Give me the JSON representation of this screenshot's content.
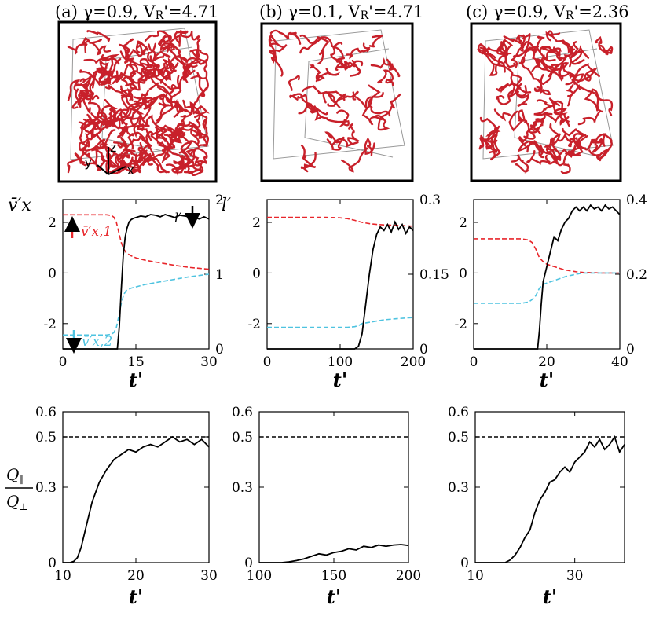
{
  "colors": {
    "black": "#000000",
    "red": "#e8262b",
    "cyan": "#4ec3e0",
    "tube": "#c8202a",
    "box": "#999999"
  },
  "panels": [
    {
      "title": "(a)  γ=0.9, V",
      "title_sub": "R",
      "title_val": "'=4.71",
      "axis_labels": [
        "y",
        "z",
        "x"
      ]
    },
    {
      "title": "(b)  γ=0.1, V",
      "title_sub": "R",
      "title_val": "'=4.71"
    },
    {
      "title": "(c)  γ=0.9, V",
      "title_sub": "R",
      "title_val": "'=2.36"
    }
  ],
  "chart_data": [
    {
      "type": "line",
      "panel": "a-middle",
      "xlabel": "t'",
      "ylabel_left": "v̄′x",
      "ylabel_right": "l′",
      "xlim": [
        0,
        30
      ],
      "ylim_left": [
        -3,
        2.9
      ],
      "ylim_right": [
        0,
        2
      ],
      "xticks": [
        0,
        15,
        30
      ],
      "yticks_left": [
        -2,
        0,
        2
      ],
      "yticks_right": [
        0,
        1,
        2
      ],
      "legend": [
        "v̄′x,1",
        "v̄′x,2",
        "l′"
      ],
      "series": [
        {
          "color": "red",
          "axis": "left",
          "style": "dashed",
          "x": [
            0,
            9,
            10,
            10.5,
            11,
            11.5,
            12,
            12.5,
            13,
            14,
            15,
            17,
            20,
            23,
            26,
            30
          ],
          "y": [
            2.3,
            2.3,
            2.27,
            2.2,
            2.0,
            1.6,
            1.2,
            0.95,
            0.8,
            0.68,
            0.6,
            0.5,
            0.4,
            0.3,
            0.22,
            0.15
          ]
        },
        {
          "color": "cyan",
          "axis": "left",
          "style": "dashed",
          "x": [
            0,
            9,
            10,
            10.5,
            11,
            11.5,
            12,
            12.5,
            13,
            14,
            15,
            17,
            20,
            23,
            26,
            30
          ],
          "y": [
            -2.45,
            -2.45,
            -2.42,
            -2.35,
            -2.15,
            -1.7,
            -1.2,
            -0.85,
            -0.7,
            -0.6,
            -0.55,
            -0.45,
            -0.35,
            -0.25,
            -0.15,
            -0.05
          ]
        },
        {
          "color": "black",
          "axis": "right",
          "style": "solid",
          "x": [
            0,
            11.2,
            11.6,
            12.0,
            12.4,
            12.8,
            13.2,
            13.6,
            14,
            14.5,
            15,
            16,
            17,
            18,
            19,
            20,
            21,
            22,
            23,
            24,
            25,
            26,
            27,
            28,
            29,
            30
          ],
          "y": [
            0,
            0,
            0.3,
            0.8,
            1.25,
            1.5,
            1.62,
            1.7,
            1.73,
            1.75,
            1.76,
            1.78,
            1.77,
            1.8,
            1.79,
            1.77,
            1.8,
            1.78,
            1.76,
            1.79,
            1.78,
            1.77,
            1.76,
            1.74,
            1.77,
            1.74
          ]
        }
      ]
    },
    {
      "type": "line",
      "panel": "b-middle",
      "xlabel": "t'",
      "xlim": [
        0,
        200
      ],
      "ylim_left": [
        -3,
        2.9
      ],
      "ylim_right": [
        0,
        0.3
      ],
      "xticks": [
        0,
        100,
        200
      ],
      "yticks_left": [
        -2,
        0,
        2
      ],
      "yticks_right": [
        0,
        0.15,
        0.3
      ],
      "series": [
        {
          "color": "red",
          "axis": "left",
          "style": "dashed",
          "x": [
            0,
            80,
            100,
            110,
            120,
            130,
            140,
            150,
            160,
            180,
            200
          ],
          "y": [
            2.2,
            2.2,
            2.18,
            2.15,
            2.08,
            2.0,
            1.95,
            1.92,
            1.9,
            1.88,
            1.85
          ]
        },
        {
          "color": "cyan",
          "axis": "left",
          "style": "dashed",
          "x": [
            0,
            110,
            120,
            125,
            130,
            140,
            150,
            160,
            180,
            200
          ],
          "y": [
            -2.15,
            -2.15,
            -2.12,
            -2.08,
            -2.0,
            -1.95,
            -1.9,
            -1.85,
            -1.8,
            -1.76
          ]
        },
        {
          "color": "black",
          "axis": "right",
          "style": "solid",
          "x": [
            0,
            120,
            125,
            130,
            135,
            140,
            145,
            150,
            155,
            160,
            165,
            170,
            175,
            180,
            185,
            190,
            195,
            200
          ],
          "y": [
            0,
            0,
            0.005,
            0.03,
            0.09,
            0.15,
            0.2,
            0.23,
            0.245,
            0.238,
            0.25,
            0.235,
            0.255,
            0.24,
            0.25,
            0.232,
            0.245,
            0.238
          ]
        }
      ]
    },
    {
      "type": "line",
      "panel": "c-middle",
      "xlabel": "t'",
      "xlim": [
        0,
        40
      ],
      "ylim_left": [
        -3,
        2.9
      ],
      "ylim_right": [
        0,
        0.4
      ],
      "xticks": [
        0,
        20,
        40
      ],
      "yticks_left": [
        -2,
        0,
        2
      ],
      "yticks_right": [
        0,
        0.2,
        0.4
      ],
      "series": [
        {
          "color": "red",
          "axis": "left",
          "style": "dashed",
          "x": [
            0,
            13,
            15,
            16,
            17,
            18,
            19,
            20,
            22,
            25,
            28,
            30,
            35,
            40
          ],
          "y": [
            1.35,
            1.35,
            1.3,
            1.2,
            0.95,
            0.6,
            0.45,
            0.35,
            0.25,
            0.12,
            0.05,
            0.02,
            0.0,
            0.0
          ]
        },
        {
          "color": "cyan",
          "axis": "left",
          "style": "dashed",
          "x": [
            0,
            13,
            15,
            16,
            17,
            18,
            19,
            20,
            22,
            25,
            28,
            30,
            35,
            40
          ],
          "y": [
            -1.2,
            -1.2,
            -1.15,
            -1.05,
            -0.9,
            -0.6,
            -0.45,
            -0.4,
            -0.3,
            -0.15,
            -0.05,
            0.0,
            0.0,
            0.0
          ]
        },
        {
          "color": "black",
          "axis": "right",
          "style": "solid",
          "x": [
            0,
            17.5,
            18,
            18.5,
            19,
            20,
            21,
            22,
            23,
            24,
            25,
            26,
            27,
            28,
            29,
            30,
            31,
            32,
            33,
            34,
            35,
            36,
            37,
            38,
            39,
            40
          ],
          "y": [
            0,
            0,
            0.05,
            0.12,
            0.18,
            0.22,
            0.26,
            0.3,
            0.29,
            0.32,
            0.34,
            0.35,
            0.37,
            0.38,
            0.37,
            0.38,
            0.37,
            0.385,
            0.375,
            0.38,
            0.37,
            0.385,
            0.375,
            0.38,
            0.37,
            0.36
          ]
        }
      ]
    },
    {
      "type": "line",
      "panel": "a-bottom",
      "xlabel": "t'",
      "ylabel": "Q∥ / Q⊥",
      "xlim": [
        10,
        30
      ],
      "ylim": [
        0,
        0.6
      ],
      "xticks": [
        10,
        20,
        30
      ],
      "yticks": [
        0,
        0.3,
        0.5,
        0.6
      ],
      "hline": 0.5,
      "series": [
        {
          "color": "black",
          "style": "solid",
          "x": [
            10,
            11,
            11.5,
            12,
            12.5,
            13,
            13.5,
            14,
            14.5,
            15,
            16,
            17,
            18,
            19,
            20,
            21,
            22,
            23,
            24,
            25,
            26,
            27,
            28,
            29,
            30
          ],
          "y": [
            0,
            0,
            0.005,
            0.02,
            0.06,
            0.12,
            0.18,
            0.24,
            0.28,
            0.32,
            0.37,
            0.41,
            0.43,
            0.45,
            0.44,
            0.46,
            0.47,
            0.46,
            0.48,
            0.5,
            0.48,
            0.49,
            0.47,
            0.49,
            0.46
          ]
        }
      ]
    },
    {
      "type": "line",
      "panel": "b-bottom",
      "xlabel": "t'",
      "xlim": [
        100,
        200
      ],
      "ylim": [
        0,
        0.6
      ],
      "xticks": [
        100,
        150,
        200
      ],
      "yticks": [
        0,
        0.3,
        0.5,
        0.6
      ],
      "hline": 0.5,
      "series": [
        {
          "color": "black",
          "style": "solid",
          "x": [
            100,
            115,
            120,
            125,
            130,
            135,
            140,
            145,
            150,
            155,
            160,
            165,
            170,
            175,
            180,
            185,
            190,
            195,
            200
          ],
          "y": [
            0,
            0,
            0.003,
            0.008,
            0.015,
            0.025,
            0.035,
            0.03,
            0.04,
            0.045,
            0.055,
            0.05,
            0.065,
            0.06,
            0.07,
            0.065,
            0.07,
            0.072,
            0.068
          ]
        }
      ]
    },
    {
      "type": "line",
      "panel": "c-bottom",
      "xlabel": "t'",
      "xlim": [
        10,
        40
      ],
      "ylim": [
        0,
        0.6
      ],
      "xticks": [
        10,
        30
      ],
      "yticks": [
        0,
        0.3,
        0.5,
        0.6
      ],
      "hline": 0.5,
      "series": [
        {
          "color": "black",
          "style": "solid",
          "x": [
            10,
            16,
            17,
            18,
            19,
            20,
            21,
            22,
            23,
            24,
            25,
            26,
            27,
            28,
            29,
            30,
            31,
            32,
            33,
            34,
            35,
            36,
            37,
            38,
            39,
            40
          ],
          "y": [
            0,
            0,
            0.01,
            0.03,
            0.06,
            0.1,
            0.13,
            0.2,
            0.25,
            0.28,
            0.32,
            0.33,
            0.36,
            0.38,
            0.36,
            0.4,
            0.42,
            0.44,
            0.48,
            0.46,
            0.49,
            0.45,
            0.47,
            0.5,
            0.44,
            0.47
          ]
        }
      ]
    }
  ]
}
